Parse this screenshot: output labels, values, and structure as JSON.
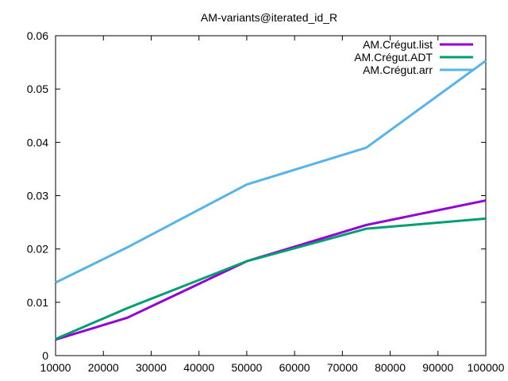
{
  "chart_data": {
    "type": "line",
    "title": "AM-variants@iterated_id_R",
    "xlabel": "",
    "ylabel": "",
    "xlim": [
      10000,
      100000
    ],
    "ylim": [
      0,
      0.06
    ],
    "x_ticks": [
      "10000",
      "20000",
      "30000",
      "40000",
      "50000",
      "60000",
      "70000",
      "80000",
      "90000",
      "100000"
    ],
    "y_ticks": [
      "0",
      "0.01",
      "0.02",
      "0.03",
      "0.04",
      "0.05",
      "0.06"
    ],
    "grid": false,
    "legend_position": "top-right",
    "series": [
      {
        "name": "AM.Crégut.list",
        "color": "#9400d3",
        "x": [
          10000,
          25000,
          50000,
          75000,
          100000
        ],
        "y": [
          0.003,
          0.0071,
          0.0177,
          0.0245,
          0.0291
        ]
      },
      {
        "name": "AM.Crégut.ADT",
        "color": "#009e73",
        "x": [
          10000,
          25000,
          50000,
          75000,
          100000
        ],
        "y": [
          0.0031,
          0.0089,
          0.0177,
          0.0238,
          0.0257
        ]
      },
      {
        "name": "AM.Crégut.arr",
        "color": "#56b4e9",
        "x": [
          10000,
          25000,
          50000,
          75000,
          100000
        ],
        "y": [
          0.0137,
          0.0203,
          0.0321,
          0.039,
          0.0553
        ]
      }
    ]
  }
}
